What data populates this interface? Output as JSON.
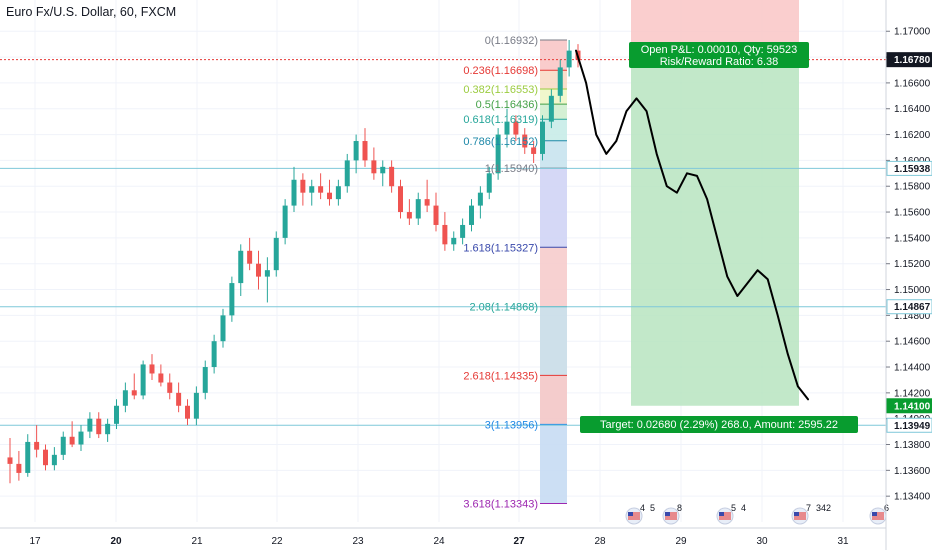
{
  "header": {
    "title": "Euro Fx/U.S. Dollar, 60, FXCM"
  },
  "colors": {
    "bull": "#26a69a",
    "bear": "#ef5350",
    "hline": "#7fc8d9",
    "current_price_line": "#e53935",
    "profit_zone": "#b7e4c0",
    "loss_zone": "#f9c6c6",
    "badge_green": "#089c2f",
    "badge_dark": "#131722"
  },
  "chart_data": {
    "type": "candlestick",
    "title": "Euro Fx/U.S. Dollar, 60, FXCM",
    "ylim": [
      1.132,
      1.1718
    ],
    "y_ticks": [
      "1.17000",
      "1.16800",
      "1.16600",
      "1.16400",
      "1.16200",
      "1.16000",
      "1.15800",
      "1.15600",
      "1.15400",
      "1.15200",
      "1.15000",
      "1.14800",
      "1.14600",
      "1.14400",
      "1.14200",
      "1.14000",
      "1.13800",
      "1.13600",
      "1.13400"
    ],
    "x_ticks": [
      "17",
      "20",
      "21",
      "22",
      "23",
      "24",
      "27",
      "28",
      "29",
      "30",
      "31"
    ],
    "price_labels": [
      {
        "text": "1.16780",
        "price": 1.1678,
        "style": "dark"
      },
      {
        "text": "1.15938",
        "price": 1.15938,
        "style": "outline"
      },
      {
        "text": "1.14867",
        "price": 1.14867,
        "style": "outline"
      },
      {
        "text": "1.14100",
        "price": 1.141,
        "style": "green"
      },
      {
        "text": "1.13949",
        "price": 1.13949,
        "style": "outline"
      }
    ],
    "horizontal_lines": [
      1.15938,
      1.14867,
      1.13949
    ],
    "current_price": 1.1678,
    "fibonacci": [
      {
        "label": "0(1.16932)",
        "price": 1.16932,
        "color": "#787b86"
      },
      {
        "label": "0.236(1.16698)",
        "price": 1.16698,
        "color": "#e53935"
      },
      {
        "label": "0.382(1.16553)",
        "price": 1.16553,
        "color": "#9ccc40"
      },
      {
        "label": "0.5(1.16436)",
        "price": 1.16436,
        "color": "#43a047"
      },
      {
        "label": "0.618(1.16319)",
        "price": 1.16319,
        "color": "#26a69a"
      },
      {
        "label": "0.786(1.16152)",
        "price": 1.16152,
        "color": "#1e88a8"
      },
      {
        "label": "1(1.15940)",
        "price": 1.1594,
        "color": "#787b86"
      },
      {
        "label": "1.618(1.15327)",
        "price": 1.15327,
        "color": "#3949ab"
      },
      {
        "label": "2.08(1.14868)",
        "price": 1.14868,
        "color": "#26a69a"
      },
      {
        "label": "2.618(1.14335)",
        "price": 1.14335,
        "color": "#e53935"
      },
      {
        "label": "3(1.13956)",
        "price": 1.13956,
        "color": "#1e88e5"
      },
      {
        "label": "3.618(1.13343)",
        "price": 1.13343,
        "color": "#9c27b0"
      }
    ],
    "position": {
      "entry": 1.1678,
      "stop": 1.172,
      "target": 1.141,
      "open_pnl_text": "Open P&L: 0.00010, Qty: 59523",
      "rr_text": "Risk/Reward Ratio: 6.38",
      "target_text": "Target: 0.02680 (2.29%) 268.0, Amount: 2595.22"
    },
    "projection_path": [
      1.1685,
      1.166,
      1.162,
      1.1605,
      1.1615,
      1.1638,
      1.1648,
      1.1638,
      1.1605,
      1.158,
      1.1575,
      1.159,
      1.1588,
      1.157,
      1.154,
      1.151,
      1.1495,
      1.1505,
      1.1515,
      1.1508,
      1.148,
      1.145,
      1.1425,
      1.1415
    ],
    "events": [
      {
        "day": "28",
        "numbers": [
          "4",
          "5"
        ]
      },
      {
        "day": "28",
        "numbers": [
          "8"
        ]
      },
      {
        "day": "29",
        "numbers": [
          "5",
          "4"
        ]
      },
      {
        "day": "30",
        "numbers": [
          "7",
          "342"
        ]
      },
      {
        "day": "31",
        "numbers": [
          "6"
        ]
      }
    ],
    "candles": [
      [
        1.137,
        1.1385,
        1.135,
        1.1365
      ],
      [
        1.1365,
        1.1375,
        1.1352,
        1.1358
      ],
      [
        1.1358,
        1.1388,
        1.1355,
        1.1382
      ],
      [
        1.1382,
        1.1395,
        1.137,
        1.1376
      ],
      [
        1.1376,
        1.138,
        1.136,
        1.1364
      ],
      [
        1.1364,
        1.1378,
        1.136,
        1.1372
      ],
      [
        1.1372,
        1.139,
        1.1368,
        1.1386
      ],
      [
        1.1386,
        1.1398,
        1.1378,
        1.138
      ],
      [
        1.138,
        1.1395,
        1.1375,
        1.139
      ],
      [
        1.139,
        1.1405,
        1.1385,
        1.14
      ],
      [
        1.14,
        1.1405,
        1.1385,
        1.1388
      ],
      [
        1.1388,
        1.14,
        1.1382,
        1.1396
      ],
      [
        1.1396,
        1.1415,
        1.1392,
        1.141
      ],
      [
        1.141,
        1.1428,
        1.1405,
        1.1422
      ],
      [
        1.1422,
        1.1435,
        1.1415,
        1.1418
      ],
      [
        1.1418,
        1.1445,
        1.1415,
        1.1442
      ],
      [
        1.1442,
        1.145,
        1.143,
        1.1435
      ],
      [
        1.1435,
        1.1442,
        1.1425,
        1.1428
      ],
      [
        1.1428,
        1.1435,
        1.1415,
        1.142
      ],
      [
        1.142,
        1.1428,
        1.1405,
        1.141
      ],
      [
        1.141,
        1.1415,
        1.1395,
        1.14
      ],
      [
        1.14,
        1.1425,
        1.1395,
        1.142
      ],
      [
        1.142,
        1.1445,
        1.1415,
        1.144
      ],
      [
        1.144,
        1.1465,
        1.1435,
        1.146
      ],
      [
        1.146,
        1.1485,
        1.1455,
        1.148
      ],
      [
        1.148,
        1.151,
        1.1475,
        1.1505
      ],
      [
        1.1505,
        1.1535,
        1.1495,
        1.153
      ],
      [
        1.153,
        1.154,
        1.1515,
        1.152
      ],
      [
        1.152,
        1.153,
        1.15,
        1.151
      ],
      [
        1.151,
        1.1525,
        1.149,
        1.1515
      ],
      [
        1.1515,
        1.1545,
        1.151,
        1.154
      ],
      [
        1.154,
        1.157,
        1.1535,
        1.1565
      ],
      [
        1.1565,
        1.1595,
        1.156,
        1.1585
      ],
      [
        1.1585,
        1.159,
        1.1565,
        1.1575
      ],
      [
        1.1575,
        1.1585,
        1.1565,
        1.158
      ],
      [
        1.158,
        1.159,
        1.157,
        1.1575
      ],
      [
        1.1575,
        1.1585,
        1.1565,
        1.157
      ],
      [
        1.157,
        1.1585,
        1.1565,
        1.158
      ],
      [
        1.158,
        1.1605,
        1.1575,
        1.16
      ],
      [
        1.16,
        1.162,
        1.159,
        1.1615
      ],
      [
        1.1615,
        1.1625,
        1.1595,
        1.16
      ],
      [
        1.16,
        1.161,
        1.1585,
        1.159
      ],
      [
        1.159,
        1.16,
        1.158,
        1.1595
      ],
      [
        1.1595,
        1.16,
        1.1575,
        1.158
      ],
      [
        1.158,
        1.1585,
        1.1555,
        1.156
      ],
      [
        1.156,
        1.157,
        1.155,
        1.1555
      ],
      [
        1.1555,
        1.1575,
        1.155,
        1.157
      ],
      [
        1.157,
        1.1585,
        1.156,
        1.1565
      ],
      [
        1.1565,
        1.1575,
        1.1545,
        1.155
      ],
      [
        1.155,
        1.156,
        1.153,
        1.1535
      ],
      [
        1.1535,
        1.1545,
        1.153,
        1.154
      ],
      [
        1.154,
        1.1555,
        1.1535,
        1.155
      ],
      [
        1.155,
        1.157,
        1.1545,
        1.1565
      ],
      [
        1.1565,
        1.158,
        1.1555,
        1.1575
      ],
      [
        1.1575,
        1.1595,
        1.157,
        1.159
      ],
      [
        1.159,
        1.1625,
        1.1585,
        1.162
      ],
      [
        1.162,
        1.164,
        1.161,
        1.163
      ],
      [
        1.163,
        1.1635,
        1.1615,
        1.162
      ],
      [
        1.162,
        1.1625,
        1.1605,
        1.161
      ],
      [
        1.161,
        1.1615,
        1.1598,
        1.1605
      ],
      [
        1.1605,
        1.1635,
        1.16,
        1.163
      ],
      [
        1.163,
        1.1655,
        1.1625,
        1.165
      ],
      [
        1.165,
        1.1678,
        1.1645,
        1.1672
      ],
      [
        1.1672,
        1.16932,
        1.1665,
        1.1685
      ],
      [
        1.1685,
        1.169,
        1.1672,
        1.1678
      ]
    ]
  }
}
